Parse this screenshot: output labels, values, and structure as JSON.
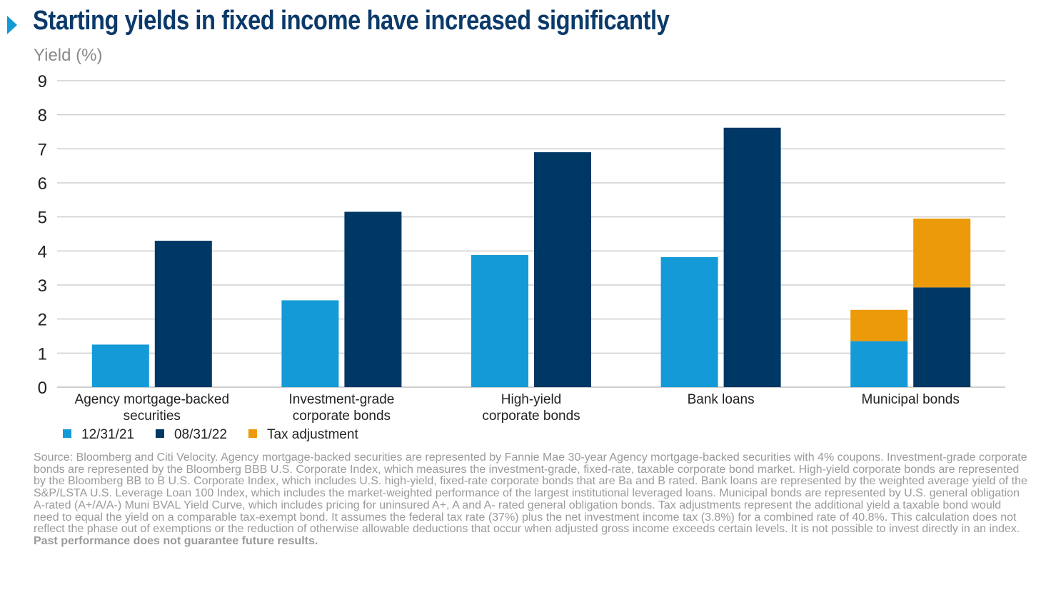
{
  "title": "Starting yields in fixed income have increased significantly",
  "colors": {
    "title": "#0b3a6a",
    "series_1": "#149ad6",
    "series_2": "#003865",
    "series_3": "#ec9a0a",
    "grid": "#cfcfcf",
    "axis_text": "#222222",
    "source_text": "#9a9a9a"
  },
  "chart_data": {
    "type": "bar",
    "ylabel": "Yield (%)",
    "ylim": [
      0,
      9
    ],
    "yticks": [
      "0",
      "1",
      "2",
      "3",
      "4",
      "5",
      "6",
      "7",
      "8",
      "9"
    ],
    "grid": true,
    "legend_position": "bottom-left",
    "categories": [
      [
        "Agency mortgage-backed",
        "securities"
      ],
      [
        "Investment-grade",
        "corporate bonds"
      ],
      [
        "High-yield",
        "corporate bonds"
      ],
      [
        "Bank loans"
      ],
      [
        "Municipal bonds"
      ]
    ],
    "groups": [
      "12/31/21",
      "08/31/22"
    ],
    "series": [
      {
        "name": "12/31/21",
        "group": 0,
        "color": "#149ad6",
        "values": [
          1.25,
          2.55,
          3.88,
          3.82,
          1.35
        ]
      },
      {
        "name": "08/31/22",
        "group": 1,
        "color": "#003865",
        "values": [
          4.3,
          5.15,
          6.9,
          7.62,
          2.93
        ]
      },
      {
        "name": "Tax adjustment",
        "stacked_on_group": true,
        "color": "#ec9a0a",
        "values": [
          null,
          null,
          null,
          null,
          null
        ],
        "stack": [
          [
            null,
            null
          ],
          [
            null,
            null
          ],
          [
            null,
            null
          ],
          [
            null,
            null
          ],
          [
            0.92,
            2.02
          ]
        ]
      }
    ]
  },
  "source": {
    "text": "Source: Bloomberg and Citi Velocity. Agency mortgage-backed securities are represented by Fannie Mae 30-year Agency mortgage-backed securities with 4% coupons. Investment-grade corporate bonds are represented by the Bloomberg BBB U.S. Corporate Index, which measures the investment-grade, fixed-rate, taxable corporate bond market. High-yield corporate bonds are represented by the Bloomberg BB to B U.S. Corporate Index, which includes U.S. high-yield, fixed-rate corporate bonds that are Ba and B rated. Bank loans are represented by the weighted average yield of the S&P/LSTA U.S. Leverage Loan 100 Index, which includes the market-weighted performance of the largest institutional leveraged loans. Municipal bonds are represented by U.S. general obligation A-rated (A+/A/A-) Muni BVAL Yield Curve, which includes pricing for uninsured A+, A and A- rated general obligation bonds. Tax adjustments represent the additional yield a taxable bond would need to equal the yield on a comparable tax-exempt bond. It assumes the federal tax rate (37%) plus the net investment income tax (3.8%) for a combined rate of 40.8%. This calculation does not reflect the phase out of exemptions or the reduction of otherwise allowable deductions that occur when adjusted gross income exceeds certain levels. It is not possible to invest directly in an index.",
    "bold": "Past performance does not guarantee future results."
  }
}
